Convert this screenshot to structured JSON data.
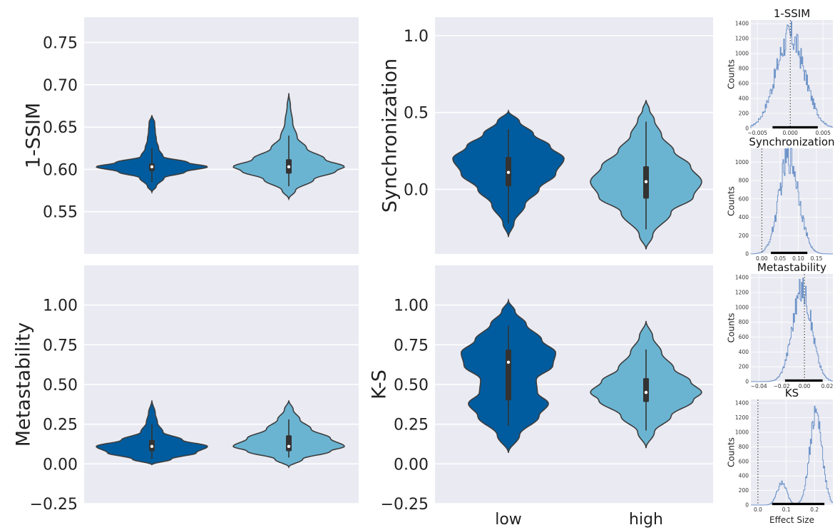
{
  "colors": {
    "low": "#005c9e",
    "high": "#6ab4d2",
    "panel_bg": "#eaeaf2",
    "hist": "#6f95c9"
  },
  "chart_data": [
    {
      "id": "violin-1ssim",
      "type": "violin",
      "ylabel": "1-SSIM",
      "xlabel": "",
      "ylim": [
        0.5,
        0.78
      ],
      "yticks": [
        0.55,
        0.6,
        0.65,
        0.7,
        0.75
      ],
      "ytick_labels": [
        "0.55",
        "0.60",
        "0.65",
        "0.70",
        "0.75"
      ],
      "categories": [],
      "series": [
        {
          "category": "low",
          "median": 0.603,
          "q1": 0.598,
          "q3": 0.607,
          "whisker_low": 0.585,
          "whisker_high": 0.625,
          "profile": [
            [
              0.573,
              0.0
            ],
            [
              0.58,
              0.08
            ],
            [
              0.59,
              0.22
            ],
            [
              0.597,
              0.6
            ],
            [
              0.603,
              1.0
            ],
            [
              0.608,
              0.65
            ],
            [
              0.615,
              0.2
            ],
            [
              0.625,
              0.12
            ],
            [
              0.635,
              0.08
            ],
            [
              0.645,
              0.06
            ],
            [
              0.655,
              0.05
            ],
            [
              0.664,
              0.0
            ]
          ]
        },
        {
          "category": "high",
          "median": 0.603,
          "q1": 0.595,
          "q3": 0.612,
          "whisker_low": 0.58,
          "whisker_high": 0.64,
          "profile": [
            [
              0.565,
              0.0
            ],
            [
              0.575,
              0.12
            ],
            [
              0.588,
              0.45
            ],
            [
              0.598,
              0.85
            ],
            [
              0.603,
              1.0
            ],
            [
              0.612,
              0.65
            ],
            [
              0.625,
              0.32
            ],
            [
              0.638,
              0.15
            ],
            [
              0.655,
              0.07
            ],
            [
              0.675,
              0.03
            ],
            [
              0.69,
              0.0
            ]
          ]
        }
      ]
    },
    {
      "id": "violin-sync",
      "type": "violin",
      "ylabel": "Synchronization",
      "xlabel": "",
      "ylim": [
        -0.42,
        1.12
      ],
      "yticks": [
        0.0,
        0.5,
        1.0
      ],
      "ytick_labels": [
        "0.0",
        "0.5",
        "1.0"
      ],
      "categories": [],
      "series": [
        {
          "category": "low",
          "median": 0.11,
          "q1": 0.02,
          "q3": 0.21,
          "whisker_low": -0.22,
          "whisker_high": 0.39,
          "profile": [
            [
              -0.31,
              0.0
            ],
            [
              -0.22,
              0.1
            ],
            [
              -0.1,
              0.3
            ],
            [
              0.0,
              0.55
            ],
            [
              0.1,
              0.85
            ],
            [
              0.2,
              1.0
            ],
            [
              0.28,
              0.75
            ],
            [
              0.36,
              0.45
            ],
            [
              0.44,
              0.2
            ],
            [
              0.51,
              0.0
            ]
          ]
        },
        {
          "category": "high",
          "median": 0.05,
          "q1": -0.06,
          "q3": 0.15,
          "whisker_low": -0.26,
          "whisker_high": 0.44,
          "profile": [
            [
              -0.39,
              0.0
            ],
            [
              -0.3,
              0.12
            ],
            [
              -0.15,
              0.45
            ],
            [
              -0.05,
              0.85
            ],
            [
              0.05,
              1.0
            ],
            [
              0.15,
              0.8
            ],
            [
              0.25,
              0.5
            ],
            [
              0.35,
              0.28
            ],
            [
              0.45,
              0.15
            ],
            [
              0.52,
              0.06
            ],
            [
              0.58,
              0.0
            ]
          ]
        }
      ]
    },
    {
      "id": "violin-meta",
      "type": "violin",
      "ylabel": "Metastability",
      "xlabel": "",
      "ylim": [
        -0.25,
        1.25
      ],
      "yticks": [
        -0.25,
        0.0,
        0.25,
        0.5,
        0.75,
        1.0
      ],
      "ytick_labels": [
        "−0.25",
        "0.00",
        "0.25",
        "0.50",
        "0.75",
        "1.00"
      ],
      "categories": [],
      "series": [
        {
          "category": "low",
          "median": 0.11,
          "q1": 0.08,
          "q3": 0.15,
          "whisker_low": 0.03,
          "whisker_high": 0.25,
          "profile": [
            [
              -0.005,
              0.0
            ],
            [
              0.03,
              0.35
            ],
            [
              0.07,
              0.8
            ],
            [
              0.11,
              1.0
            ],
            [
              0.15,
              0.55
            ],
            [
              0.2,
              0.2
            ],
            [
              0.26,
              0.1
            ],
            [
              0.32,
              0.06
            ],
            [
              0.4,
              0.0
            ]
          ]
        },
        {
          "category": "high",
          "median": 0.11,
          "q1": 0.08,
          "q3": 0.18,
          "whisker_low": 0.04,
          "whisker_high": 0.28,
          "profile": [
            [
              -0.02,
              0.0
            ],
            [
              0.03,
              0.25
            ],
            [
              0.08,
              0.75
            ],
            [
              0.11,
              1.0
            ],
            [
              0.16,
              0.75
            ],
            [
              0.22,
              0.4
            ],
            [
              0.28,
              0.2
            ],
            [
              0.34,
              0.08
            ],
            [
              0.4,
              0.0
            ]
          ]
        }
      ]
    },
    {
      "id": "violin-ks",
      "type": "violin",
      "ylabel": "K-S",
      "xlabel": "",
      "ylim": [
        -0.25,
        1.25
      ],
      "yticks": [
        -0.25,
        0.0,
        0.25,
        0.5,
        0.75,
        1.0
      ],
      "ytick_labels": [
        "−0.25",
        "0.00",
        "0.25",
        "0.50",
        "0.75",
        "1.00"
      ],
      "categories": [
        "low",
        "high"
      ],
      "series": [
        {
          "category": "low",
          "median": 0.64,
          "q1": 0.4,
          "q3": 0.72,
          "whisker_low": 0.24,
          "whisker_high": 0.87,
          "profile": [
            [
              0.07,
              0.0
            ],
            [
              0.18,
              0.2
            ],
            [
              0.3,
              0.55
            ],
            [
              0.38,
              0.72
            ],
            [
              0.45,
              0.52
            ],
            [
              0.53,
              0.5
            ],
            [
              0.62,
              0.8
            ],
            [
              0.7,
              0.85
            ],
            [
              0.78,
              0.6
            ],
            [
              0.88,
              0.32
            ],
            [
              0.96,
              0.12
            ],
            [
              1.03,
              0.0
            ]
          ]
        },
        {
          "category": "high",
          "median": 0.45,
          "q1": 0.39,
          "q3": 0.54,
          "whisker_low": 0.21,
          "whisker_high": 0.72,
          "profile": [
            [
              0.1,
              0.0
            ],
            [
              0.2,
              0.15
            ],
            [
              0.3,
              0.45
            ],
            [
              0.4,
              0.85
            ],
            [
              0.45,
              1.0
            ],
            [
              0.52,
              0.8
            ],
            [
              0.6,
              0.5
            ],
            [
              0.7,
              0.28
            ],
            [
              0.8,
              0.12
            ],
            [
              0.9,
              0.0
            ]
          ]
        }
      ]
    },
    {
      "id": "hist-1ssim",
      "type": "histogram",
      "title": "1-SSIM",
      "ylabel": "Counts",
      "xlabel": "",
      "xlim": [
        -0.006,
        0.0065
      ],
      "ylim": [
        0,
        1450
      ],
      "xticks": [
        -0.005,
        0.0,
        0.005
      ],
      "xtick_labels": [
        "−0.005",
        "0.000",
        "0.005"
      ],
      "yticks": [
        0,
        200,
        400,
        600,
        800,
        1000,
        1200,
        1400
      ],
      "ytick_labels": [
        "0",
        "200",
        "400",
        "600",
        "800",
        "1000",
        "1200",
        "1400"
      ],
      "dashed_x": 0.0,
      "interval": [
        -0.0027,
        0.0042
      ],
      "center": 0.0,
      "width": 0.0022,
      "peak": 1230,
      "noise": 0.35
    },
    {
      "id": "hist-sync",
      "type": "histogram",
      "title": "Synchronization",
      "ylabel": "Counts",
      "xlabel": "",
      "xlim": [
        -0.03,
        0.195
      ],
      "ylim": [
        0,
        1150
      ],
      "xticks": [
        0.0,
        0.05,
        0.1,
        0.15
      ],
      "xtick_labels": [
        "0.00",
        "0.05",
        "0.10",
        "0.15"
      ],
      "yticks": [
        0,
        200,
        400,
        600,
        800,
        1000
      ],
      "ytick_labels": [
        "0",
        "200",
        "400",
        "600",
        "800",
        "1000"
      ],
      "dashed_x": 0.0,
      "interval": [
        0.025,
        0.125
      ],
      "center": 0.075,
      "width": 0.027,
      "peak": 1060,
      "noise": 0.35
    },
    {
      "id": "hist-meta",
      "type": "histogram",
      "title": "Metastability",
      "ylabel": "Counts",
      "xlabel": "",
      "xlim": [
        -0.047,
        0.025
      ],
      "ylim": [
        0,
        1450
      ],
      "xticks": [
        -0.04,
        -0.02,
        0.0,
        0.02
      ],
      "xtick_labels": [
        "−0.04",
        "−0.02",
        "0.00",
        "0.02"
      ],
      "yticks": [
        0,
        200,
        400,
        600,
        800,
        1000,
        1200,
        1400
      ],
      "ytick_labels": [
        "0",
        "200",
        "400",
        "600",
        "800",
        "1000",
        "1200",
        "1400"
      ],
      "dashed_x": 0.0,
      "interval": [
        -0.017,
        0.016
      ],
      "center": -0.002,
      "width": 0.0085,
      "peak": 1240,
      "noise": 0.3
    },
    {
      "id": "hist-ks",
      "type": "histogram",
      "title": "KS",
      "ylabel": "Counts",
      "xlabel": "Effect Size",
      "xlim": [
        -0.025,
        0.265
      ],
      "ylim": [
        0,
        1450
      ],
      "xticks": [
        0.0,
        0.1,
        0.2
      ],
      "xtick_labels": [
        "0.0",
        "0.1",
        "0.2"
      ],
      "yticks": [
        0,
        200,
        400,
        600,
        800,
        1000,
        1200,
        1400
      ],
      "ytick_labels": [
        "0",
        "200",
        "400",
        "600",
        "800",
        "1000",
        "1200",
        "1400"
      ],
      "dashed_x": 0.0,
      "interval": [
        0.05,
        0.235
      ],
      "center": 0.205,
      "width": 0.022,
      "peak": 1270,
      "noise": 0.3,
      "secondary": {
        "center": 0.085,
        "width": 0.017,
        "peak": 300
      }
    }
  ]
}
